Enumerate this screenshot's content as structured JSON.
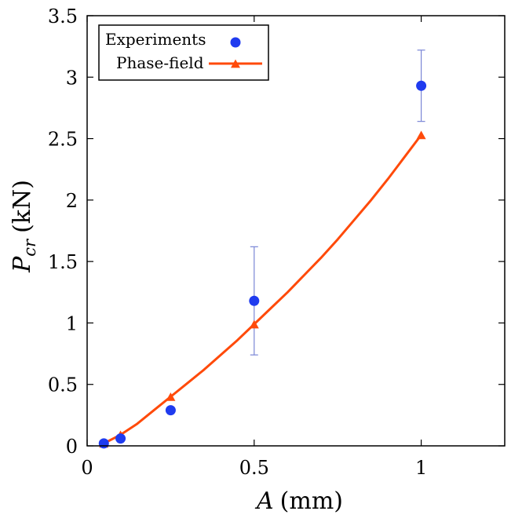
{
  "chart_data": {
    "type": "scatter+line",
    "title": "",
    "xlabel": {
      "symbol": "A",
      "unit": "(mm)"
    },
    "ylabel": {
      "symbol": "P",
      "subscript": "cr",
      "unit": "(kN)"
    },
    "xlim": [
      0,
      1.25
    ],
    "ylim": [
      0,
      3.5
    ],
    "x_ticks": [
      0,
      0.5,
      1
    ],
    "x_tick_labels": [
      "0",
      "0.5",
      "1"
    ],
    "y_ticks": [
      0,
      0.5,
      1,
      1.5,
      2,
      2.5,
      3,
      3.5
    ],
    "y_tick_labels": [
      "0",
      "0.5",
      "1",
      "1.5",
      "2",
      "2.5",
      "3",
      "3.5"
    ],
    "grid": false,
    "legend_position": "top-left",
    "series": [
      {
        "name": "Experiments",
        "kind": "scatter",
        "marker": "circle",
        "color": "#1f3bef",
        "errorbar_color": "#7a86d6",
        "points": [
          {
            "x": 0.05,
            "y": 0.02,
            "err_low": null,
            "err_high": null
          },
          {
            "x": 0.1,
            "y": 0.06,
            "err_low": null,
            "err_high": null
          },
          {
            "x": 0.25,
            "y": 0.29,
            "err_low": null,
            "err_high": null
          },
          {
            "x": 0.5,
            "y": 1.18,
            "err_low": 0.74,
            "err_high": 1.62
          },
          {
            "x": 1.0,
            "y": 2.93,
            "err_low": 2.64,
            "err_high": 3.22
          }
        ]
      },
      {
        "name": "Phase-field",
        "kind": "line",
        "marker": "triangle",
        "color": "#ff4a0a",
        "points": [
          {
            "x": 0.05,
            "y": 0.02
          },
          {
            "x": 0.1,
            "y": 0.09
          },
          {
            "x": 0.25,
            "y": 0.4
          },
          {
            "x": 0.5,
            "y": 0.99
          },
          {
            "x": 1.0,
            "y": 2.53
          }
        ],
        "curve": [
          {
            "x": 0.05,
            "y": 0.02
          },
          {
            "x": 0.1,
            "y": 0.09
          },
          {
            "x": 0.15,
            "y": 0.18
          },
          {
            "x": 0.2,
            "y": 0.29
          },
          {
            "x": 0.25,
            "y": 0.4
          },
          {
            "x": 0.3,
            "y": 0.51
          },
          {
            "x": 0.35,
            "y": 0.62
          },
          {
            "x": 0.4,
            "y": 0.74
          },
          {
            "x": 0.45,
            "y": 0.86
          },
          {
            "x": 0.5,
            "y": 0.99
          },
          {
            "x": 0.55,
            "y": 1.12
          },
          {
            "x": 0.6,
            "y": 1.25
          },
          {
            "x": 0.65,
            "y": 1.39
          },
          {
            "x": 0.7,
            "y": 1.53
          },
          {
            "x": 0.75,
            "y": 1.68
          },
          {
            "x": 0.8,
            "y": 1.84
          },
          {
            "x": 0.85,
            "y": 2.0
          },
          {
            "x": 0.9,
            "y": 2.17
          },
          {
            "x": 0.95,
            "y": 2.35
          },
          {
            "x": 1.0,
            "y": 2.53
          }
        ]
      }
    ]
  }
}
